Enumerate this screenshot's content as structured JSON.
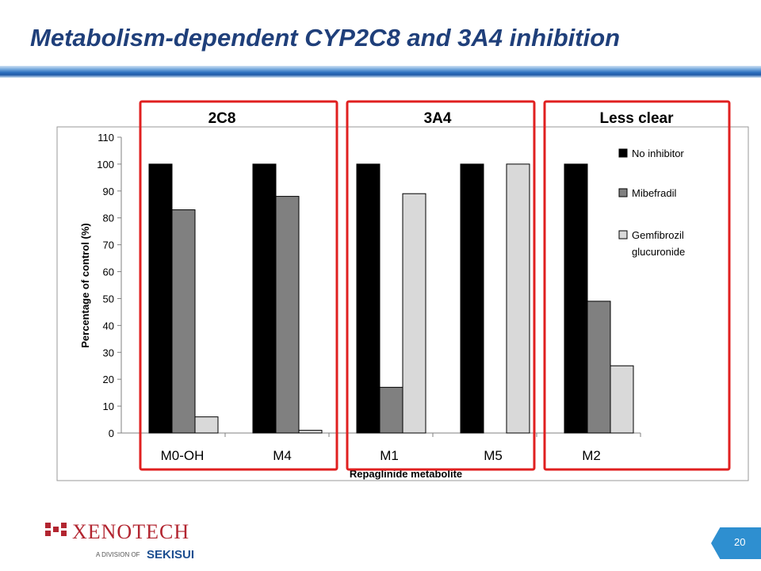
{
  "slide": {
    "title": "Metabolism-dependent CYP2C8 and 3A4 inhibition",
    "page_number": "20"
  },
  "logo": {
    "company": "XENOTECH",
    "division_text": "A DIVISION OF",
    "parent": "SEKISUI",
    "brand_color": "#b22530",
    "parent_color": "#1d4f91"
  },
  "groups": [
    {
      "label": "2C8"
    },
    {
      "label": "3A4"
    },
    {
      "label": "Less clear"
    }
  ],
  "chart_data": {
    "type": "bar",
    "categories": [
      "M0-OH",
      "M4",
      "M1",
      "M5",
      "M2"
    ],
    "series": [
      {
        "name": "No inhibitor",
        "color": "#000000",
        "values": [
          100,
          100,
          100,
          100,
          100
        ]
      },
      {
        "name": "Mibefradil",
        "color": "#808080",
        "values": [
          83,
          88,
          17,
          0,
          49
        ]
      },
      {
        "name": "Gemfibrozil glucuronide",
        "color": "#d9d9d9",
        "values": [
          6,
          1,
          89,
          100,
          25
        ]
      }
    ],
    "legend_lines": [
      [
        "No inhibitor"
      ],
      [
        "Mibefradil"
      ],
      [
        "Gemfibrozil",
        "glucuronide"
      ]
    ],
    "ylabel": "Percentage of control (%)",
    "xlabel": "Repaglinide metabolite",
    "ylim": [
      0,
      110
    ],
    "yticks": [
      0,
      10,
      20,
      30,
      40,
      50,
      60,
      70,
      80,
      90,
      100,
      110
    ],
    "legend_position": "right",
    "grid": false
  }
}
